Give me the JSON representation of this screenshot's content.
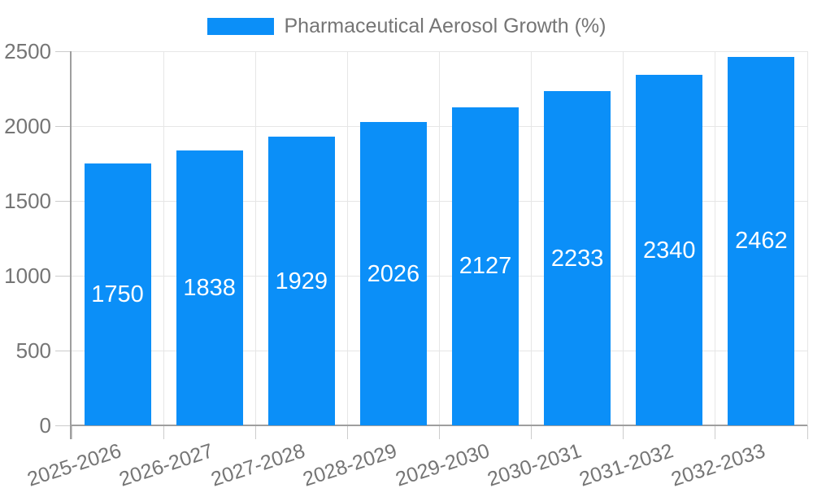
{
  "chart_data": {
    "type": "bar",
    "title": "",
    "legend": {
      "label": "Pharmaceutical Aerosol Growth (%)",
      "position": "top"
    },
    "categories": [
      "2025-2026",
      "2026-2027",
      "2027-2028",
      "2028-2029",
      "2029-2030",
      "2030-2031",
      "2031-2032",
      "2032-2033"
    ],
    "series": [
      {
        "name": "Pharmaceutical Aerosol Growth (%)",
        "values": [
          1750,
          1838,
          1929,
          2026,
          2127,
          2233,
          2340,
          2462
        ]
      }
    ],
    "bar_labels": [
      "1750",
      "1838",
      "1929",
      "2026",
      "2127",
      "2233",
      "2340",
      "2462"
    ],
    "xlabel": "",
    "ylabel": "",
    "ylim": [
      0,
      2500
    ],
    "yticks": [
      0,
      500,
      1000,
      1500,
      2000,
      2500
    ],
    "ytick_labels": [
      "0",
      "500",
      "1000",
      "1500",
      "2000",
      "2500"
    ],
    "grid": true,
    "x_label_rotation_deg": -18,
    "colors": {
      "bar": "#0b8ff8",
      "bar_label": "#ffffff",
      "axis_label": "#757575",
      "gridline": "#e6e6e6",
      "tick": "#cccccc",
      "axis_line": "#9e9e9e",
      "background": "#ffffff"
    }
  }
}
